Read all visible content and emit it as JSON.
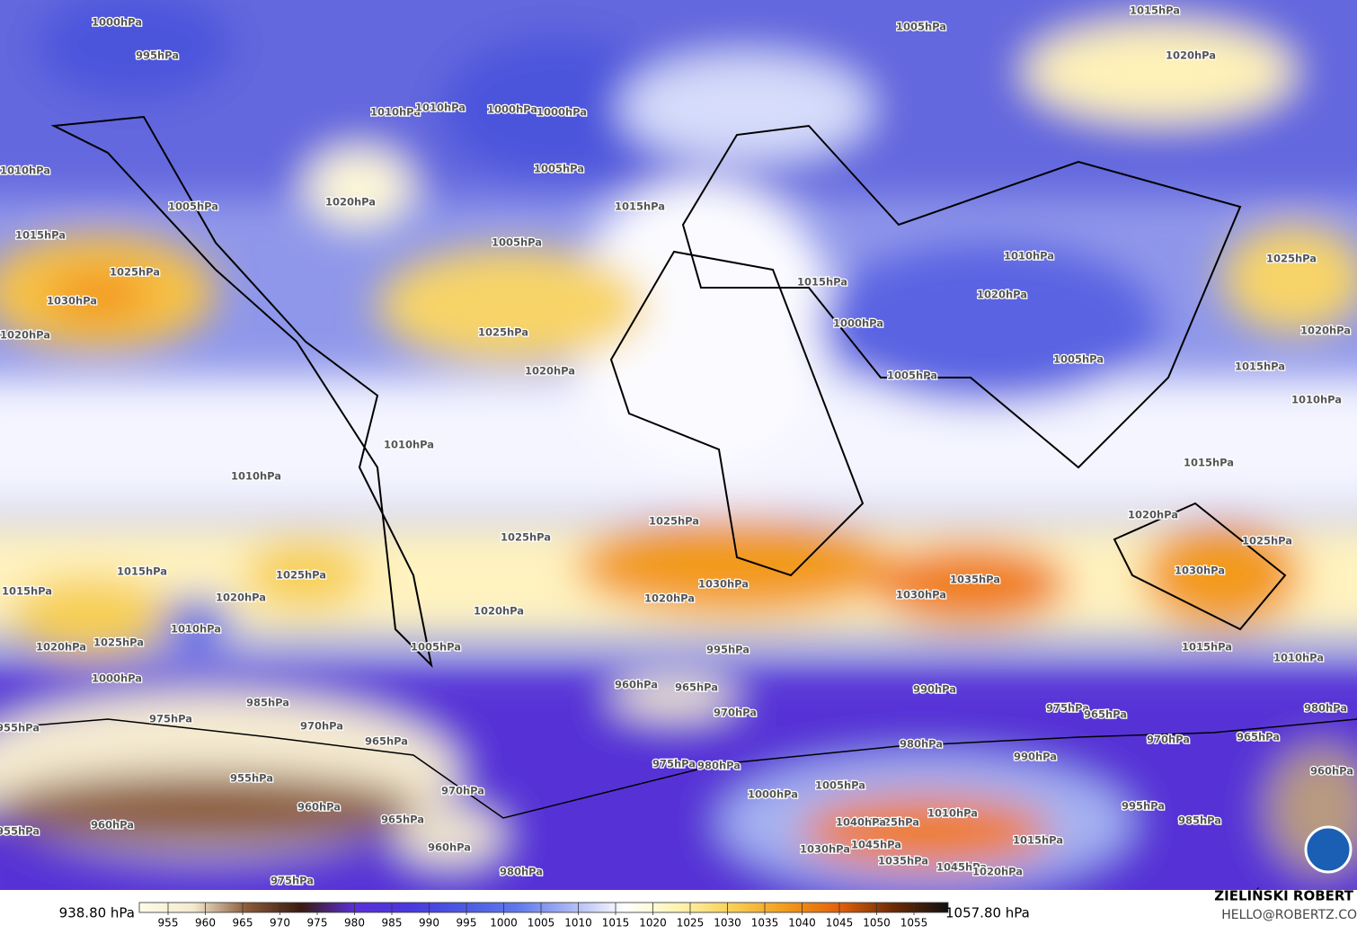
{
  "map": {
    "contour_labels": [
      "1000hPa",
      "995hPa",
      "1005hPa",
      "1015hPa",
      "1020hPa",
      "1010hPa",
      "1010hPa",
      "1000hPa",
      "1000hPa",
      "1005hPa",
      "1010hPa",
      "1020hPa",
      "1005hPa",
      "1005hPa",
      "1015hPa",
      "1015hPa",
      "1025hPa",
      "1030hPa",
      "1020hPa",
      "1025hPa",
      "1020hPa",
      "1015hPa",
      "1010hPa",
      "1020hPa",
      "1000hPa",
      "1005hPa",
      "1005hPa",
      "1025hPa",
      "1020hPa",
      "1015hPa",
      "1010hPa",
      "1010hPa",
      "1010hPa",
      "1025hPa",
      "1025hPa",
      "1015hPa",
      "1020hPa",
      "1025hPa",
      "1030hPa",
      "1015hPa",
      "1015hPa",
      "1025hPa",
      "1020hPa",
      "1010hPa",
      "1025hPa",
      "1020hPa",
      "1030hPa",
      "1020hPa",
      "1020hPa",
      "1035hPa",
      "1030hPa",
      "1005hPa",
      "1015hPa",
      "1010hPa",
      "995hPa",
      "1000hPa",
      "960hPa",
      "965hPa",
      "990hPa",
      "985hPa",
      "970hPa",
      "975hPa",
      "970hPa",
      "975hPa",
      "965hPa",
      "980hPa",
      "955hPa",
      "965hPa",
      "980hPa",
      "970hPa",
      "965hPa",
      "975hPa",
      "980hPa",
      "990hPa",
      "960hPa",
      "955hPa",
      "970hPa",
      "1000hPa",
      "1005hPa",
      "995hPa",
      "960hPa",
      "1010hPa",
      "1025hPa",
      "1040hPa",
      "965hPa",
      "960hPa",
      "955hPa",
      "1045hPa",
      "985hPa",
      "1015hPa",
      "960hPa",
      "1030hPa",
      "1035hPa",
      "1045hPa",
      "1020hPa",
      "980hPa",
      "975hPa"
    ]
  },
  "colorbar": {
    "min_label": "938.80 hPa",
    "max_label": "1057.80 hPa",
    "ticks": [
      955,
      960,
      965,
      970,
      975,
      980,
      985,
      990,
      995,
      1000,
      1005,
      1010,
      1015,
      1020,
      1025,
      1030,
      1035,
      1040,
      1045,
      1050,
      1055
    ],
    "colors": [
      "#fffbe6",
      "#f4ead0",
      "#8a5a3a",
      "#3a1a10",
      "#5a2fd8",
      "#4a38e0",
      "#4b5ae0",
      "#5f78ec",
      "#aab6f4",
      "#ffffff",
      "#fff3b0",
      "#f7cf55",
      "#f39a1c",
      "#e0600c",
      "#6a2a06",
      "#111111"
    ]
  },
  "credits": {
    "name": "ZIELIŃSKI ROBERT",
    "email": "HELLO@ROBERTZ.CO"
  }
}
